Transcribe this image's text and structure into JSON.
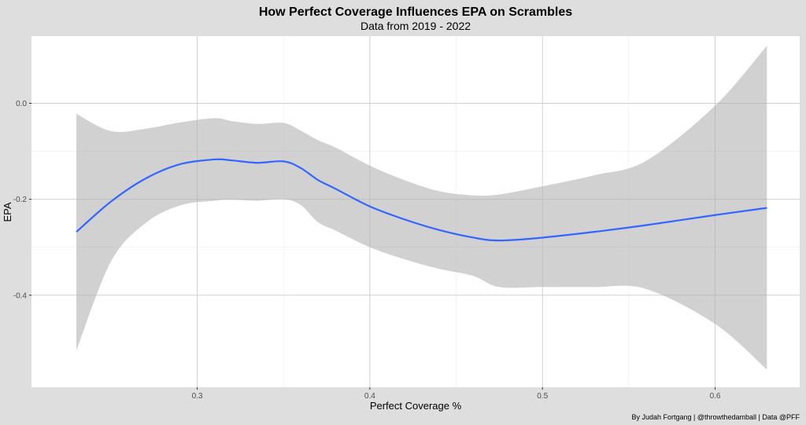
{
  "chart_data": {
    "type": "line",
    "title": "How Perfect Coverage Influences EPA on Scrambles",
    "subtitle": "Data from 2019 - 2022",
    "xlabel": "Perfect Coverage %",
    "ylabel": "EPA",
    "caption": "By Judah Fortgang | @throwthedamball | Data @PFF",
    "xlim": [
      0.204,
      0.649
    ],
    "ylim": [
      -0.592,
      0.14
    ],
    "x_ticks": [
      0.3,
      0.4,
      0.5,
      0.6
    ],
    "x_tick_labels": [
      "0.3",
      "0.4",
      "0.5",
      "0.6"
    ],
    "y_ticks": [
      0.0,
      -0.2,
      -0.4
    ],
    "y_tick_labels": [
      "0.0",
      "-0.2",
      "-0.4"
    ],
    "grid": true,
    "colors": {
      "line": "#3366ff",
      "ribbon": "#b3b3b3",
      "panel": "#ffffff",
      "grid": "#d0d0d0",
      "background": "#dedede"
    },
    "series": [
      {
        "type": "smooth",
        "x": [
          0.23,
          0.25,
          0.27,
          0.29,
          0.31,
          0.32,
          0.335,
          0.35,
          0.36,
          0.37,
          0.38,
          0.4,
          0.42,
          0.44,
          0.46,
          0.475,
          0.5,
          0.53,
          0.56,
          0.6,
          0.63
        ],
        "y": [
          -0.268,
          -0.205,
          -0.157,
          -0.127,
          -0.117,
          -0.119,
          -0.124,
          -0.121,
          -0.135,
          -0.16,
          -0.178,
          -0.215,
          -0.242,
          -0.264,
          -0.28,
          -0.286,
          -0.28,
          -0.268,
          -0.254,
          -0.233,
          -0.218
        ],
        "lower": [
          -0.515,
          -0.33,
          -0.25,
          -0.213,
          -0.203,
          -0.201,
          -0.203,
          -0.2,
          -0.212,
          -0.248,
          -0.265,
          -0.3,
          -0.325,
          -0.345,
          -0.36,
          -0.383,
          -0.383,
          -0.383,
          -0.387,
          -0.46,
          -0.555
        ],
        "upper": [
          -0.022,
          -0.058,
          -0.053,
          -0.04,
          -0.031,
          -0.037,
          -0.043,
          -0.041,
          -0.057,
          -0.077,
          -0.092,
          -0.13,
          -0.16,
          -0.183,
          -0.192,
          -0.19,
          -0.173,
          -0.15,
          -0.12,
          -0.005,
          0.12
        ]
      }
    ]
  }
}
